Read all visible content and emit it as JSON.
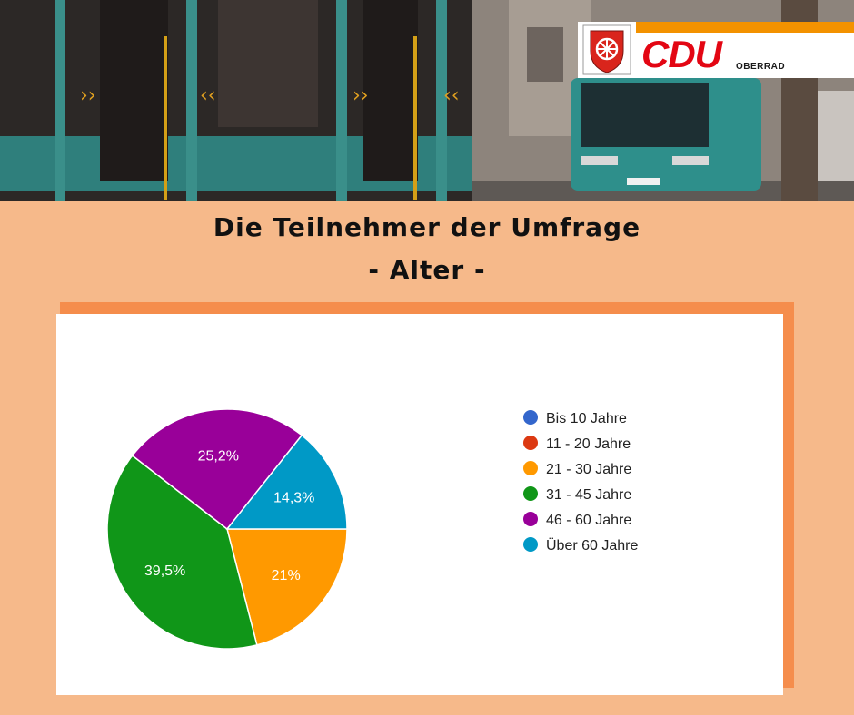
{
  "header": {
    "logo_text": "CDU",
    "logo_subtext": "OBERRAD",
    "accent_color": "#f39200",
    "brand_color": "#e30613"
  },
  "title_line1": "Die Teilnehmer der Umfrage",
  "title_line2": "- Alter -",
  "chart_data": {
    "type": "pie",
    "title": "",
    "categories": [
      "Bis 10 Jahre",
      "11 - 20 Jahre",
      "21 - 30 Jahre",
      "31 - 45 Jahre",
      "46 - 60 Jahre",
      "Über 60 Jahre"
    ],
    "values": [
      0,
      0,
      21,
      39.5,
      25.2,
      14.3
    ],
    "labels": [
      "",
      "",
      "21%",
      "39,5%",
      "25,2%",
      "14,3%"
    ],
    "colors": [
      "#3366cc",
      "#dc3912",
      "#ff9900",
      "#109618",
      "#990099",
      "#0099c6"
    ],
    "legend_position": "right"
  }
}
